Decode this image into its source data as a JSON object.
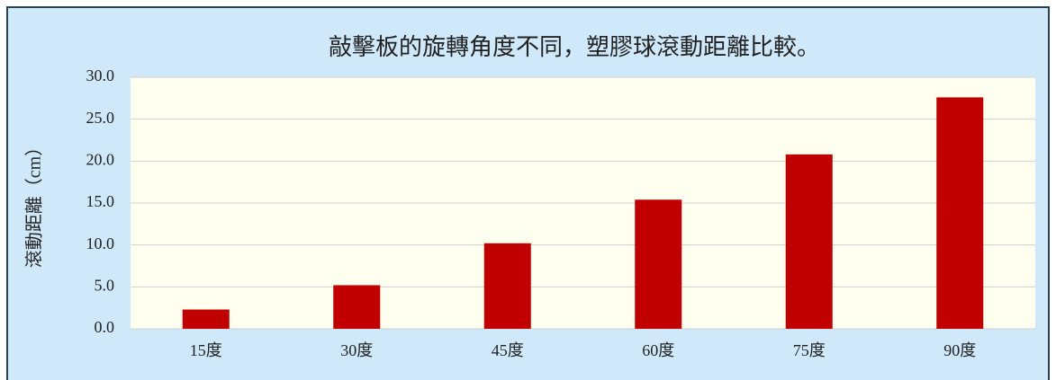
{
  "chart_data": {
    "type": "bar",
    "title": "敲擊板的旋轉角度不同，塑膠球滾動距離比較。",
    "y_label": "滾動距離（cm）",
    "categories": [
      "15度",
      "30度",
      "45度",
      "60度",
      "75度",
      "90度"
    ],
    "values": [
      2.3,
      5.2,
      10.2,
      15.4,
      20.8,
      27.6
    ],
    "color": "#c00000",
    "ylim": [
      0,
      30
    ],
    "yticks": [
      {
        "value": 0,
        "label": "0.0"
      },
      {
        "value": 5,
        "label": "5.0"
      },
      {
        "value": 10,
        "label": "10.0"
      },
      {
        "value": 15,
        "label": "15.0"
      },
      {
        "value": 20,
        "label": "20.0"
      },
      {
        "value": 25,
        "label": "25.0"
      },
      {
        "value": 30,
        "label": "30.0"
      }
    ],
    "grid": true
  }
}
